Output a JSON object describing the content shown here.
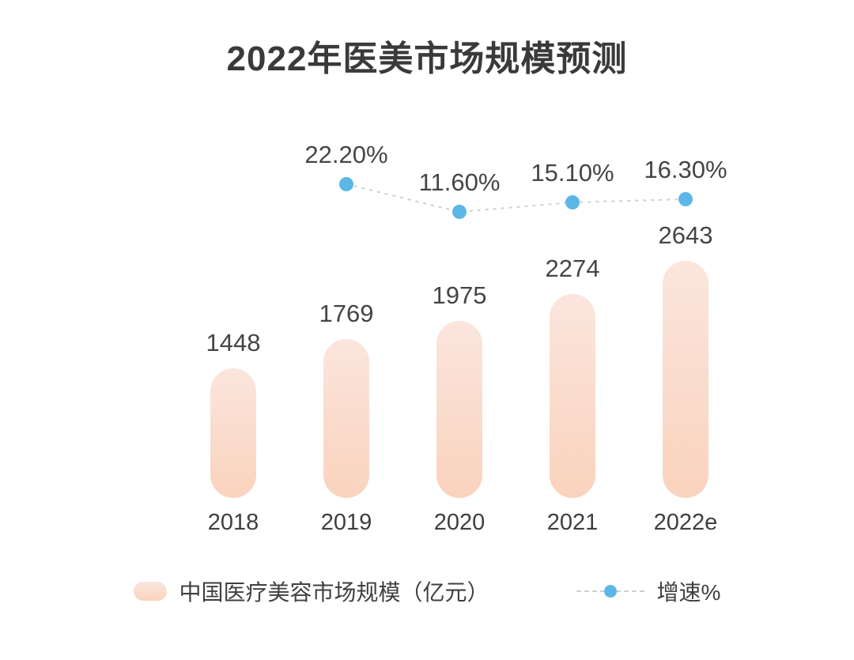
{
  "title": "2022年医美市场规模预测",
  "legend": {
    "bar_label": "中国医疗美容市场规模（亿元）",
    "line_label": "增速%"
  },
  "chart_data": {
    "type": "combo",
    "title": "2022年医美市场规模预测",
    "categories": [
      "2018",
      "2019",
      "2020",
      "2021",
      "2022e"
    ],
    "series": [
      {
        "name": "中国医疗美容市场规模（亿元）",
        "type": "bar",
        "values": [
          1448,
          1769,
          1975,
          2274,
          2643
        ],
        "value_labels": [
          "1448",
          "1769",
          "1975",
          "2274",
          "2643"
        ]
      },
      {
        "name": "增速%",
        "type": "line",
        "values": [
          null,
          22.2,
          11.6,
          15.1,
          16.3
        ],
        "point_labels": [
          "",
          "22.20%",
          "11.60%",
          "15.10%",
          "16.30%"
        ]
      }
    ],
    "ylim_bar": [
      0,
      2643
    ],
    "grid": false,
    "legend_position": "bottom",
    "colors": {
      "bar_top": "#fbe5dd",
      "bar_bottom": "#fad3bd",
      "dot": "#5cb7e7",
      "dash_line": "#cfcfcf",
      "text": "#3f3f3f"
    }
  }
}
